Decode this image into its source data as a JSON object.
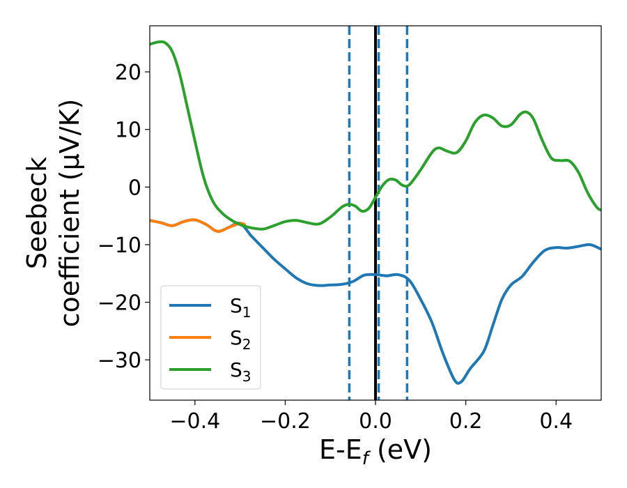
{
  "chart_data": {
    "type": "line",
    "xlabel": "E-E",
    "xlabel_sub": "f",
    "xlabel_unit": " (eV)",
    "ylabel_line1": "Seebeck",
    "ylabel_line2": "coefficient  (μV/K)",
    "xlim": [
      -0.5,
      0.5
    ],
    "ylim": [
      -37,
      28
    ],
    "xticks": [
      -0.4,
      -0.2,
      0.0,
      0.2,
      0.4
    ],
    "xtick_labels": [
      "−0.4",
      "−0.2",
      "0.0",
      "0.2",
      "0.4"
    ],
    "yticks": [
      -30,
      -20,
      -10,
      0,
      10,
      20
    ],
    "ytick_labels": [
      "−30",
      "−20",
      "−10",
      "0",
      "10",
      "20"
    ],
    "grid": false,
    "legend_position": "lower-left",
    "vertical_lines": [
      {
        "x": 0.0,
        "style": "solid",
        "color": "#000000"
      },
      {
        "x": -0.058,
        "style": "dashed",
        "color": "#1f77b4"
      },
      {
        "x": 0.007,
        "style": "dashed",
        "color": "#1f77b4"
      },
      {
        "x": 0.07,
        "style": "dashed",
        "color": "#1f77b4"
      }
    ],
    "series": [
      {
        "name": "S",
        "sub": "1",
        "color": "#1f77b4",
        "x": [
          -0.5,
          -0.475,
          -0.45,
          -0.425,
          -0.4,
          -0.375,
          -0.35,
          -0.325,
          -0.3,
          -0.275,
          -0.25,
          -0.225,
          -0.2,
          -0.175,
          -0.15,
          -0.125,
          -0.1,
          -0.075,
          -0.05,
          -0.025,
          0.0,
          0.025,
          0.05,
          0.075,
          0.1,
          0.125,
          0.15,
          0.175,
          0.19,
          0.21,
          0.24,
          0.26,
          0.28,
          0.3,
          0.325,
          0.35,
          0.375,
          0.4,
          0.425,
          0.45,
          0.475,
          0.5
        ],
        "y": [
          -5.8,
          -6.2,
          -6.7,
          -6.0,
          -5.7,
          -6.5,
          -7.7,
          -7.0,
          -6.3,
          -8.5,
          -10.5,
          -12.5,
          -14.2,
          -15.8,
          -16.8,
          -17.1,
          -17.0,
          -16.9,
          -16.4,
          -15.3,
          -15.2,
          -15.4,
          -15.2,
          -16.2,
          -19.5,
          -23.5,
          -29.0,
          -33.5,
          -33.8,
          -31.5,
          -28.5,
          -24.0,
          -19.5,
          -17.0,
          -15.5,
          -13.0,
          -11.0,
          -10.5,
          -10.6,
          -10.3,
          -10.0,
          -10.8
        ]
      },
      {
        "name": "S",
        "sub": "2",
        "color": "#ff7f0e",
        "x": [
          -0.5,
          -0.475,
          -0.45,
          -0.425,
          -0.4,
          -0.375,
          -0.35,
          -0.325,
          -0.3,
          -0.29
        ],
        "y": [
          -5.8,
          -6.2,
          -6.7,
          -6.0,
          -5.7,
          -6.5,
          -7.7,
          -7.0,
          -6.3,
          -6.5
        ]
      },
      {
        "name": "S",
        "sub": "3",
        "color": "#2ca02c",
        "x": [
          -0.5,
          -0.48,
          -0.465,
          -0.45,
          -0.435,
          -0.42,
          -0.4,
          -0.38,
          -0.36,
          -0.34,
          -0.32,
          -0.3,
          -0.28,
          -0.25,
          -0.225,
          -0.2,
          -0.175,
          -0.15,
          -0.125,
          -0.1,
          -0.075,
          -0.06,
          -0.045,
          -0.03,
          -0.015,
          0.0,
          0.015,
          0.03,
          0.045,
          0.06,
          0.075,
          0.1,
          0.125,
          0.14,
          0.16,
          0.18,
          0.2,
          0.22,
          0.24,
          0.26,
          0.28,
          0.3,
          0.32,
          0.335,
          0.35,
          0.37,
          0.39,
          0.41,
          0.43,
          0.45,
          0.47,
          0.49,
          0.5
        ],
        "y": [
          24.8,
          25.2,
          25.0,
          23.5,
          20.0,
          15.0,
          8.0,
          1.5,
          -2.5,
          -4.5,
          -5.7,
          -6.5,
          -7.0,
          -7.3,
          -6.7,
          -6.0,
          -5.8,
          -6.2,
          -6.4,
          -5.2,
          -3.5,
          -3.0,
          -3.3,
          -4.2,
          -3.7,
          -1.8,
          0.2,
          1.3,
          1.2,
          0.3,
          0.4,
          3.0,
          6.0,
          6.8,
          6.2,
          6.0,
          8.0,
          11.2,
          12.5,
          12.0,
          10.6,
          10.8,
          12.6,
          13.0,
          11.8,
          8.0,
          5.0,
          4.6,
          4.5,
          2.5,
          -1.0,
          -3.5,
          -4.0
        ]
      }
    ]
  }
}
